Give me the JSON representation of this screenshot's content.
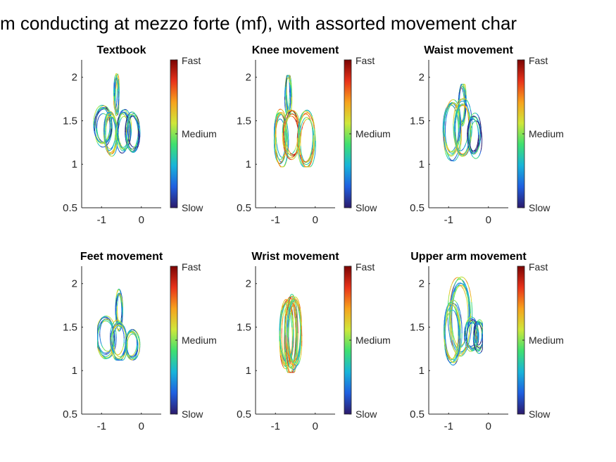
{
  "chart_data": {
    "suptitle": "m conducting at mezzo forte (mf), with assorted movement char",
    "colorbar_labels": [
      "Fast",
      "Medium",
      "Slow"
    ],
    "colormap": [
      "#2b1a6b",
      "#1f5fe0",
      "#18b4d9",
      "#3fe070",
      "#cfe73a",
      "#f7a21c",
      "#e8321a",
      "#7a0403"
    ],
    "axes": {
      "xlim": [
        -1.5,
        0.5
      ],
      "ylim": [
        0.5,
        2.2
      ],
      "xticks": [
        -1,
        0
      ],
      "xtick_labels": [
        "-1",
        "0"
      ],
      "yticks": [
        0.5,
        1,
        1.5,
        2
      ],
      "ytick_labels": [
        "0.5",
        "1",
        "1.5",
        "2"
      ]
    },
    "panels": [
      {
        "title": "Textbook",
        "type": "line",
        "x_range": [
          -1.2,
          -0.03
        ],
        "y_range": [
          1.08,
          2.05
        ],
        "loops": [
          {
            "cx": -0.62,
            "cy": 1.8,
            "rx": 0.05,
            "ry": 0.22,
            "speed": 0.4
          },
          {
            "cx": -0.97,
            "cy": 1.44,
            "rx": 0.2,
            "ry": 0.2,
            "speed": 0.3
          },
          {
            "cx": -0.78,
            "cy": 1.36,
            "rx": 0.16,
            "ry": 0.24,
            "speed": 0.45
          },
          {
            "cx": -0.44,
            "cy": 1.38,
            "rx": 0.16,
            "ry": 0.22,
            "speed": 0.3
          },
          {
            "cx": -0.22,
            "cy": 1.37,
            "rx": 0.17,
            "ry": 0.22,
            "speed": 0.25
          }
        ]
      },
      {
        "title": "Knee movement",
        "type": "line",
        "x_range": [
          -1.05,
          0.02
        ],
        "y_range": [
          0.97,
          2.02
        ],
        "loops": [
          {
            "cx": -0.68,
            "cy": 1.8,
            "rx": 0.06,
            "ry": 0.22,
            "speed": 0.35
          },
          {
            "cx": -0.88,
            "cy": 1.3,
            "rx": 0.16,
            "ry": 0.3,
            "speed": 0.5
          },
          {
            "cx": -0.58,
            "cy": 1.34,
            "rx": 0.2,
            "ry": 0.26,
            "speed": 0.65
          },
          {
            "cx": -0.22,
            "cy": 1.3,
            "rx": 0.2,
            "ry": 0.3,
            "speed": 0.55
          }
        ]
      },
      {
        "title": "Waist movement",
        "type": "line",
        "x_range": [
          -1.15,
          -0.05
        ],
        "y_range": [
          0.95,
          1.92
        ],
        "loops": [
          {
            "cx": -0.65,
            "cy": 1.7,
            "rx": 0.08,
            "ry": 0.22,
            "speed": 0.35
          },
          {
            "cx": -0.92,
            "cy": 1.4,
            "rx": 0.2,
            "ry": 0.3,
            "speed": 0.4
          },
          {
            "cx": -0.66,
            "cy": 1.4,
            "rx": 0.2,
            "ry": 0.3,
            "speed": 0.45
          },
          {
            "cx": -0.36,
            "cy": 1.33,
            "rx": 0.16,
            "ry": 0.22,
            "speed": 0.2
          }
        ]
      },
      {
        "title": "Feet movement",
        "type": "line",
        "x_range": [
          -1.1,
          -0.03
        ],
        "y_range": [
          1.12,
          1.95
        ],
        "loops": [
          {
            "cx": -0.56,
            "cy": 1.7,
            "rx": 0.08,
            "ry": 0.2,
            "speed": 0.35
          },
          {
            "cx": -0.88,
            "cy": 1.38,
            "rx": 0.22,
            "ry": 0.22,
            "speed": 0.35
          },
          {
            "cx": -0.56,
            "cy": 1.34,
            "rx": 0.18,
            "ry": 0.2,
            "speed": 0.4
          },
          {
            "cx": -0.22,
            "cy": 1.3,
            "rx": 0.16,
            "ry": 0.16,
            "speed": 0.35
          }
        ]
      },
      {
        "title": "Wrist movement",
        "type": "line",
        "x_range": [
          -0.98,
          -0.32
        ],
        "y_range": [
          0.98,
          1.88
        ],
        "loops": [
          {
            "cx": -0.72,
            "cy": 1.42,
            "rx": 0.18,
            "ry": 0.4,
            "speed": 0.55
          },
          {
            "cx": -0.6,
            "cy": 1.4,
            "rx": 0.14,
            "ry": 0.42,
            "speed": 0.6
          },
          {
            "cx": -0.52,
            "cy": 1.44,
            "rx": 0.16,
            "ry": 0.36,
            "speed": 0.5
          }
        ]
      },
      {
        "title": "Upper arm movement",
        "type": "line",
        "x_range": [
          -1.12,
          -0.15
        ],
        "y_range": [
          1.03,
          2.08
        ],
        "loops": [
          {
            "cx": -0.72,
            "cy": 1.62,
            "rx": 0.26,
            "ry": 0.42,
            "speed": 0.45
          },
          {
            "cx": -0.9,
            "cy": 1.42,
            "rx": 0.2,
            "ry": 0.34,
            "speed": 0.4
          },
          {
            "cx": -0.42,
            "cy": 1.42,
            "rx": 0.16,
            "ry": 0.18,
            "speed": 0.3
          },
          {
            "cx": -0.24,
            "cy": 1.4,
            "rx": 0.12,
            "ry": 0.16,
            "speed": 0.25
          }
        ]
      }
    ]
  }
}
